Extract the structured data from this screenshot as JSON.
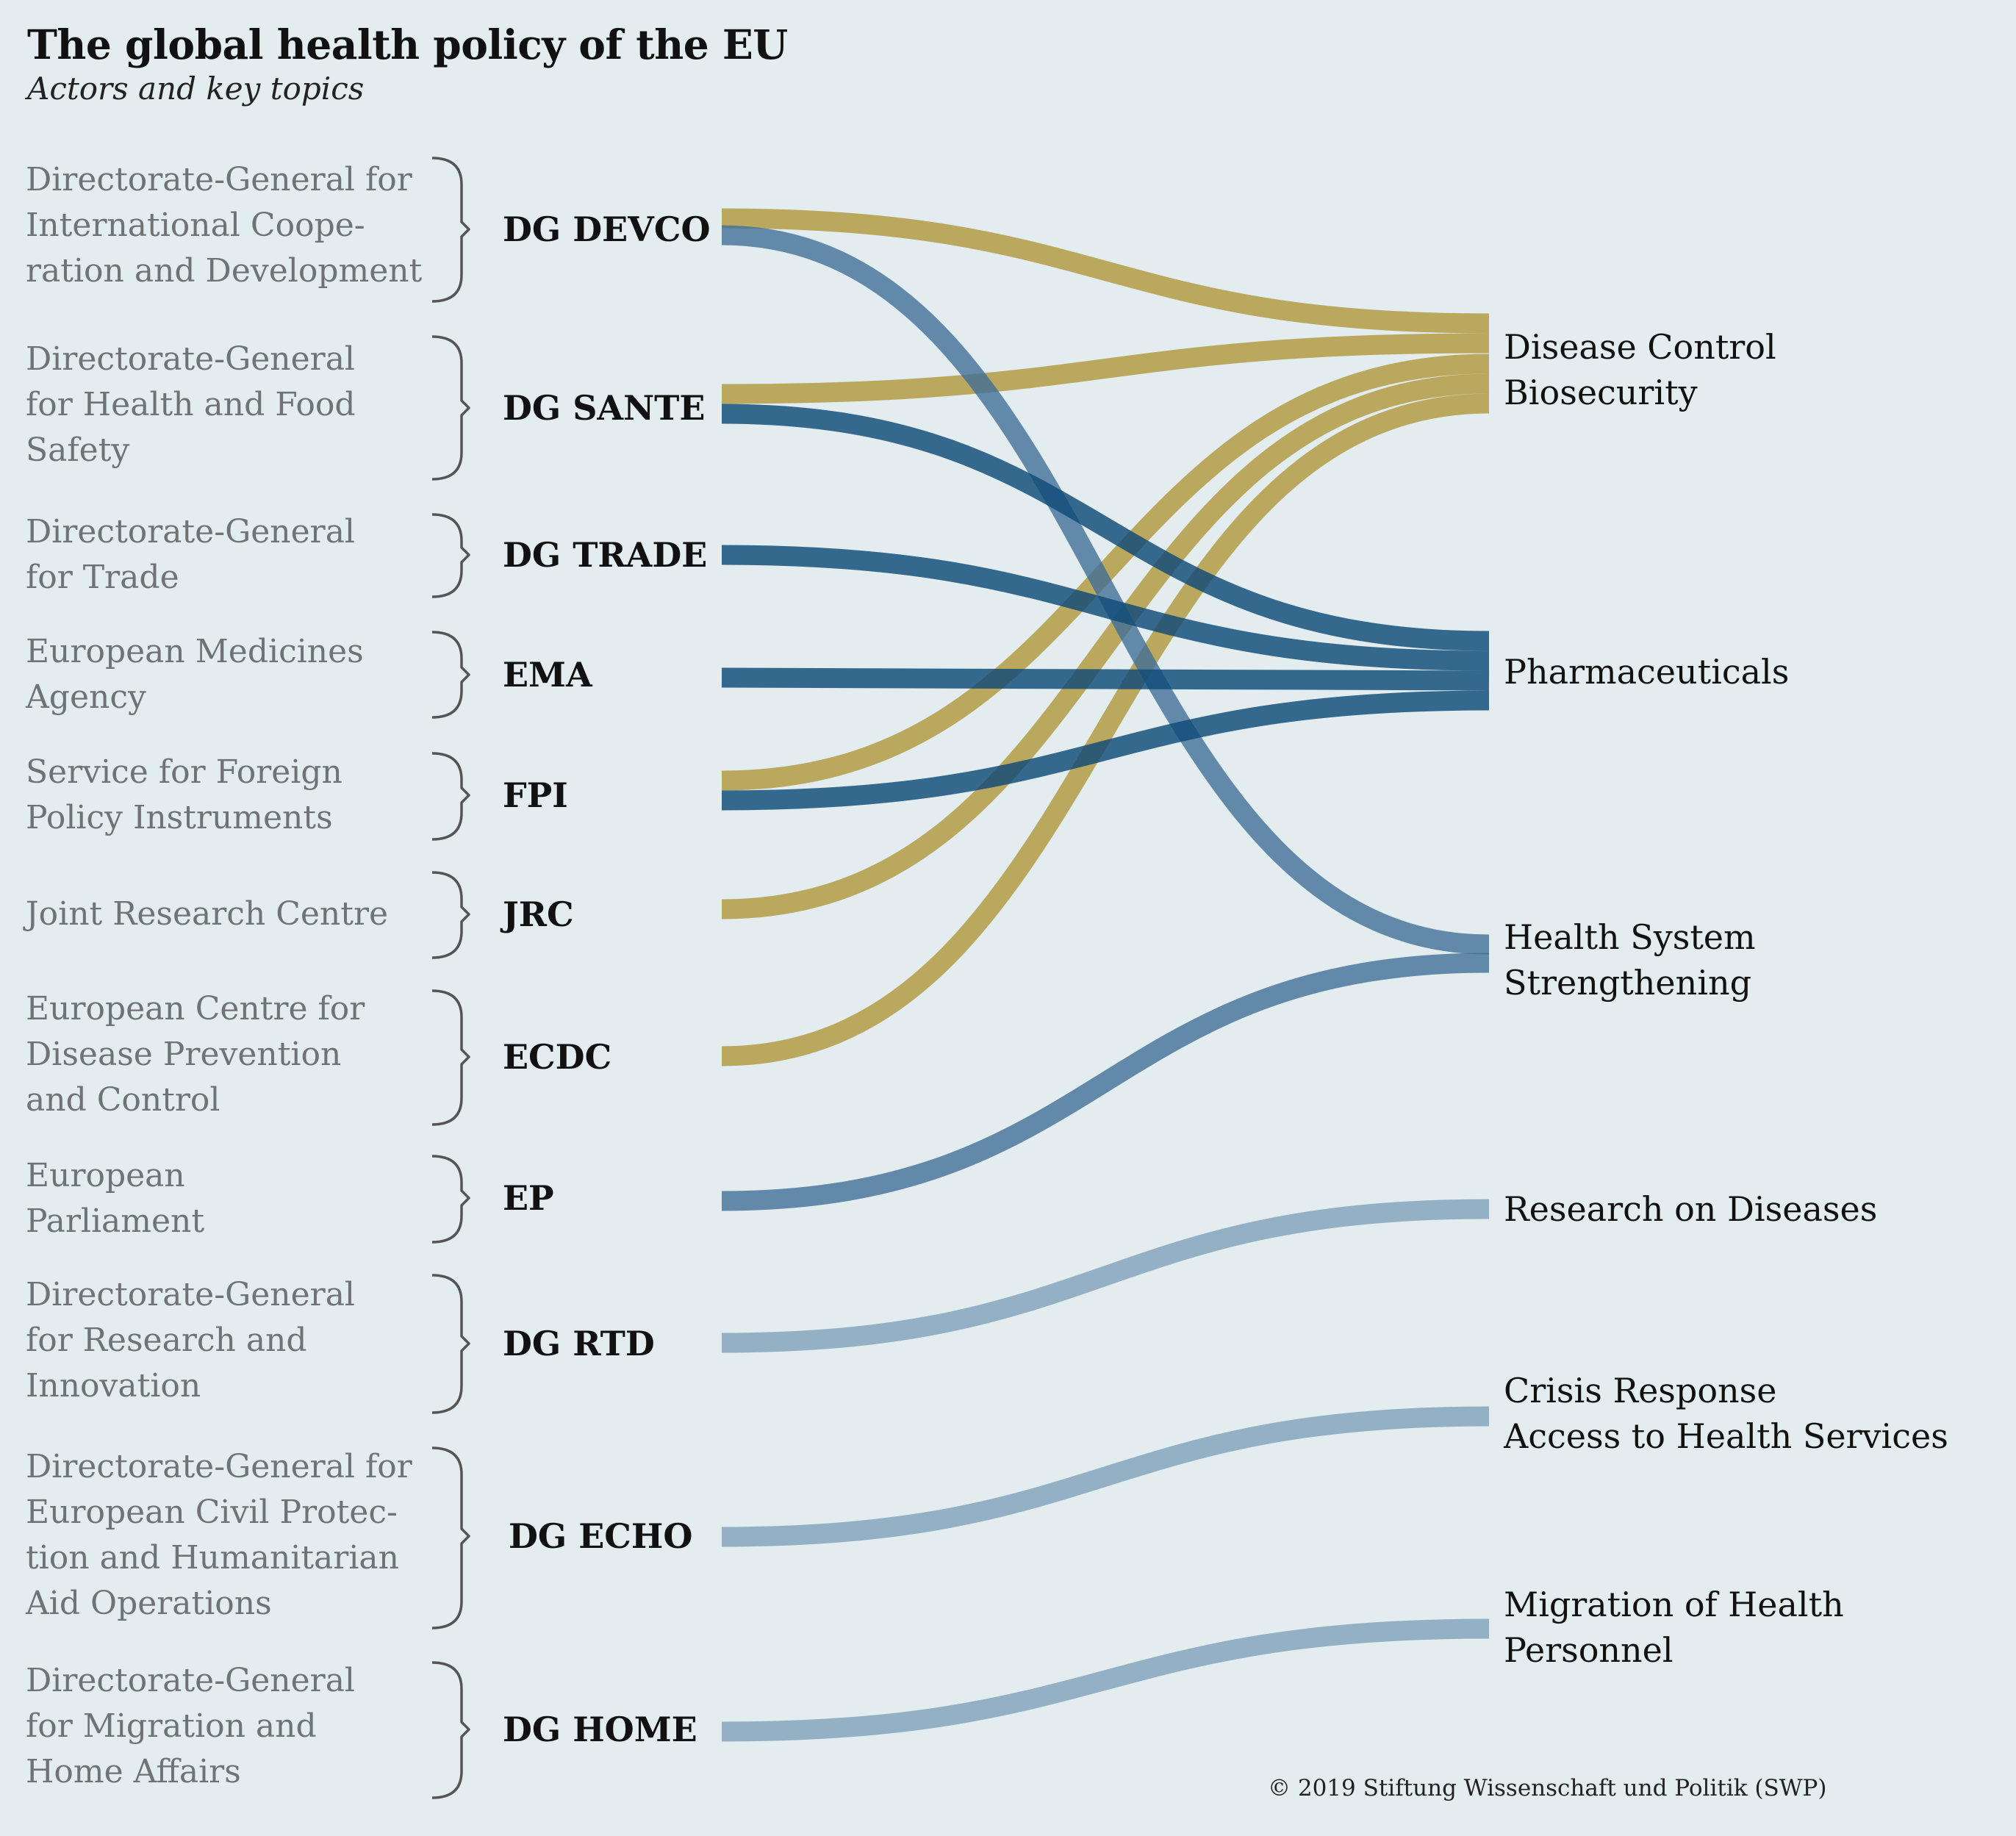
{
  "header": {
    "title": "The global health policy of the EU",
    "subtitle": "Actors and key topics"
  },
  "colors": {
    "background": "#e3ecee",
    "gold": "#b2983f",
    "navy": "#0f4a78",
    "mid_blue": "#3d6d96",
    "light_blue": "#7c9fb8",
    "bracket": "#555555",
    "full_name_text": "#6f7376"
  },
  "actors": [
    {
      "id": "devco",
      "abbr": "DG DEVCO",
      "full": "Directorate-General for\nInternational Coope-\nration and Development"
    },
    {
      "id": "sante",
      "abbr": "DG SANTE",
      "full": "Directorate-General\nfor Health and Food\nSafety"
    },
    {
      "id": "trade",
      "abbr": "DG TRADE",
      "full": "Directorate-General\nfor Trade"
    },
    {
      "id": "ema",
      "abbr": "EMA",
      "full": "European Medicines\nAgency"
    },
    {
      "id": "fpi",
      "abbr": "FPI",
      "full": "Service for Foreign\nPolicy Instruments"
    },
    {
      "id": "jrc",
      "abbr": "JRC",
      "full": "Joint Research Centre"
    },
    {
      "id": "ecdc",
      "abbr": "ECDC",
      "full": "European Centre for\nDisease Prevention\nand Control"
    },
    {
      "id": "ep",
      "abbr": "EP",
      "full": "European\nParliament"
    },
    {
      "id": "rtd",
      "abbr": "DG RTD",
      "full": "Directorate-General\nfor Research and\nInnovation"
    },
    {
      "id": "echo",
      "abbr": "DG ECHO",
      "full": "Directorate-General for\nEuropean Civil Protec-\ntion and Humanitarian\nAid Operations"
    },
    {
      "id": "home",
      "abbr": "DG HOME",
      "full": "Directorate-General\nfor Migration and\nHome Affairs"
    }
  ],
  "topics": [
    {
      "id": "disease",
      "label": "Disease Control\nBiosecurity"
    },
    {
      "id": "pharma",
      "label": "Pharmaceuticals"
    },
    {
      "id": "hss",
      "label": "Health System\nStrengthening"
    },
    {
      "id": "research",
      "label": "Research on Diseases"
    },
    {
      "id": "crisis",
      "label": "Crisis Response\nAccess to Health Services"
    },
    {
      "id": "migration",
      "label": "Migration of Health\nPersonnel"
    }
  ],
  "links": [
    {
      "from": "devco",
      "to": "disease",
      "color": "gold"
    },
    {
      "from": "devco",
      "to": "hss",
      "color": "mid_blue"
    },
    {
      "from": "sante",
      "to": "disease",
      "color": "gold"
    },
    {
      "from": "sante",
      "to": "pharma",
      "color": "navy"
    },
    {
      "from": "trade",
      "to": "pharma",
      "color": "navy"
    },
    {
      "from": "ema",
      "to": "pharma",
      "color": "navy"
    },
    {
      "from": "fpi",
      "to": "disease",
      "color": "gold"
    },
    {
      "from": "fpi",
      "to": "pharma",
      "color": "navy"
    },
    {
      "from": "jrc",
      "to": "disease",
      "color": "gold"
    },
    {
      "from": "ecdc",
      "to": "disease",
      "color": "gold"
    },
    {
      "from": "ep",
      "to": "hss",
      "color": "mid_blue"
    },
    {
      "from": "rtd",
      "to": "research",
      "color": "light_blue"
    },
    {
      "from": "echo",
      "to": "crisis",
      "color": "light_blue"
    },
    {
      "from": "home",
      "to": "migration",
      "color": "light_blue"
    }
  ],
  "footer": {
    "copyright": "© 2019 Stiftung Wissenschaft und Politik (SWP)"
  }
}
